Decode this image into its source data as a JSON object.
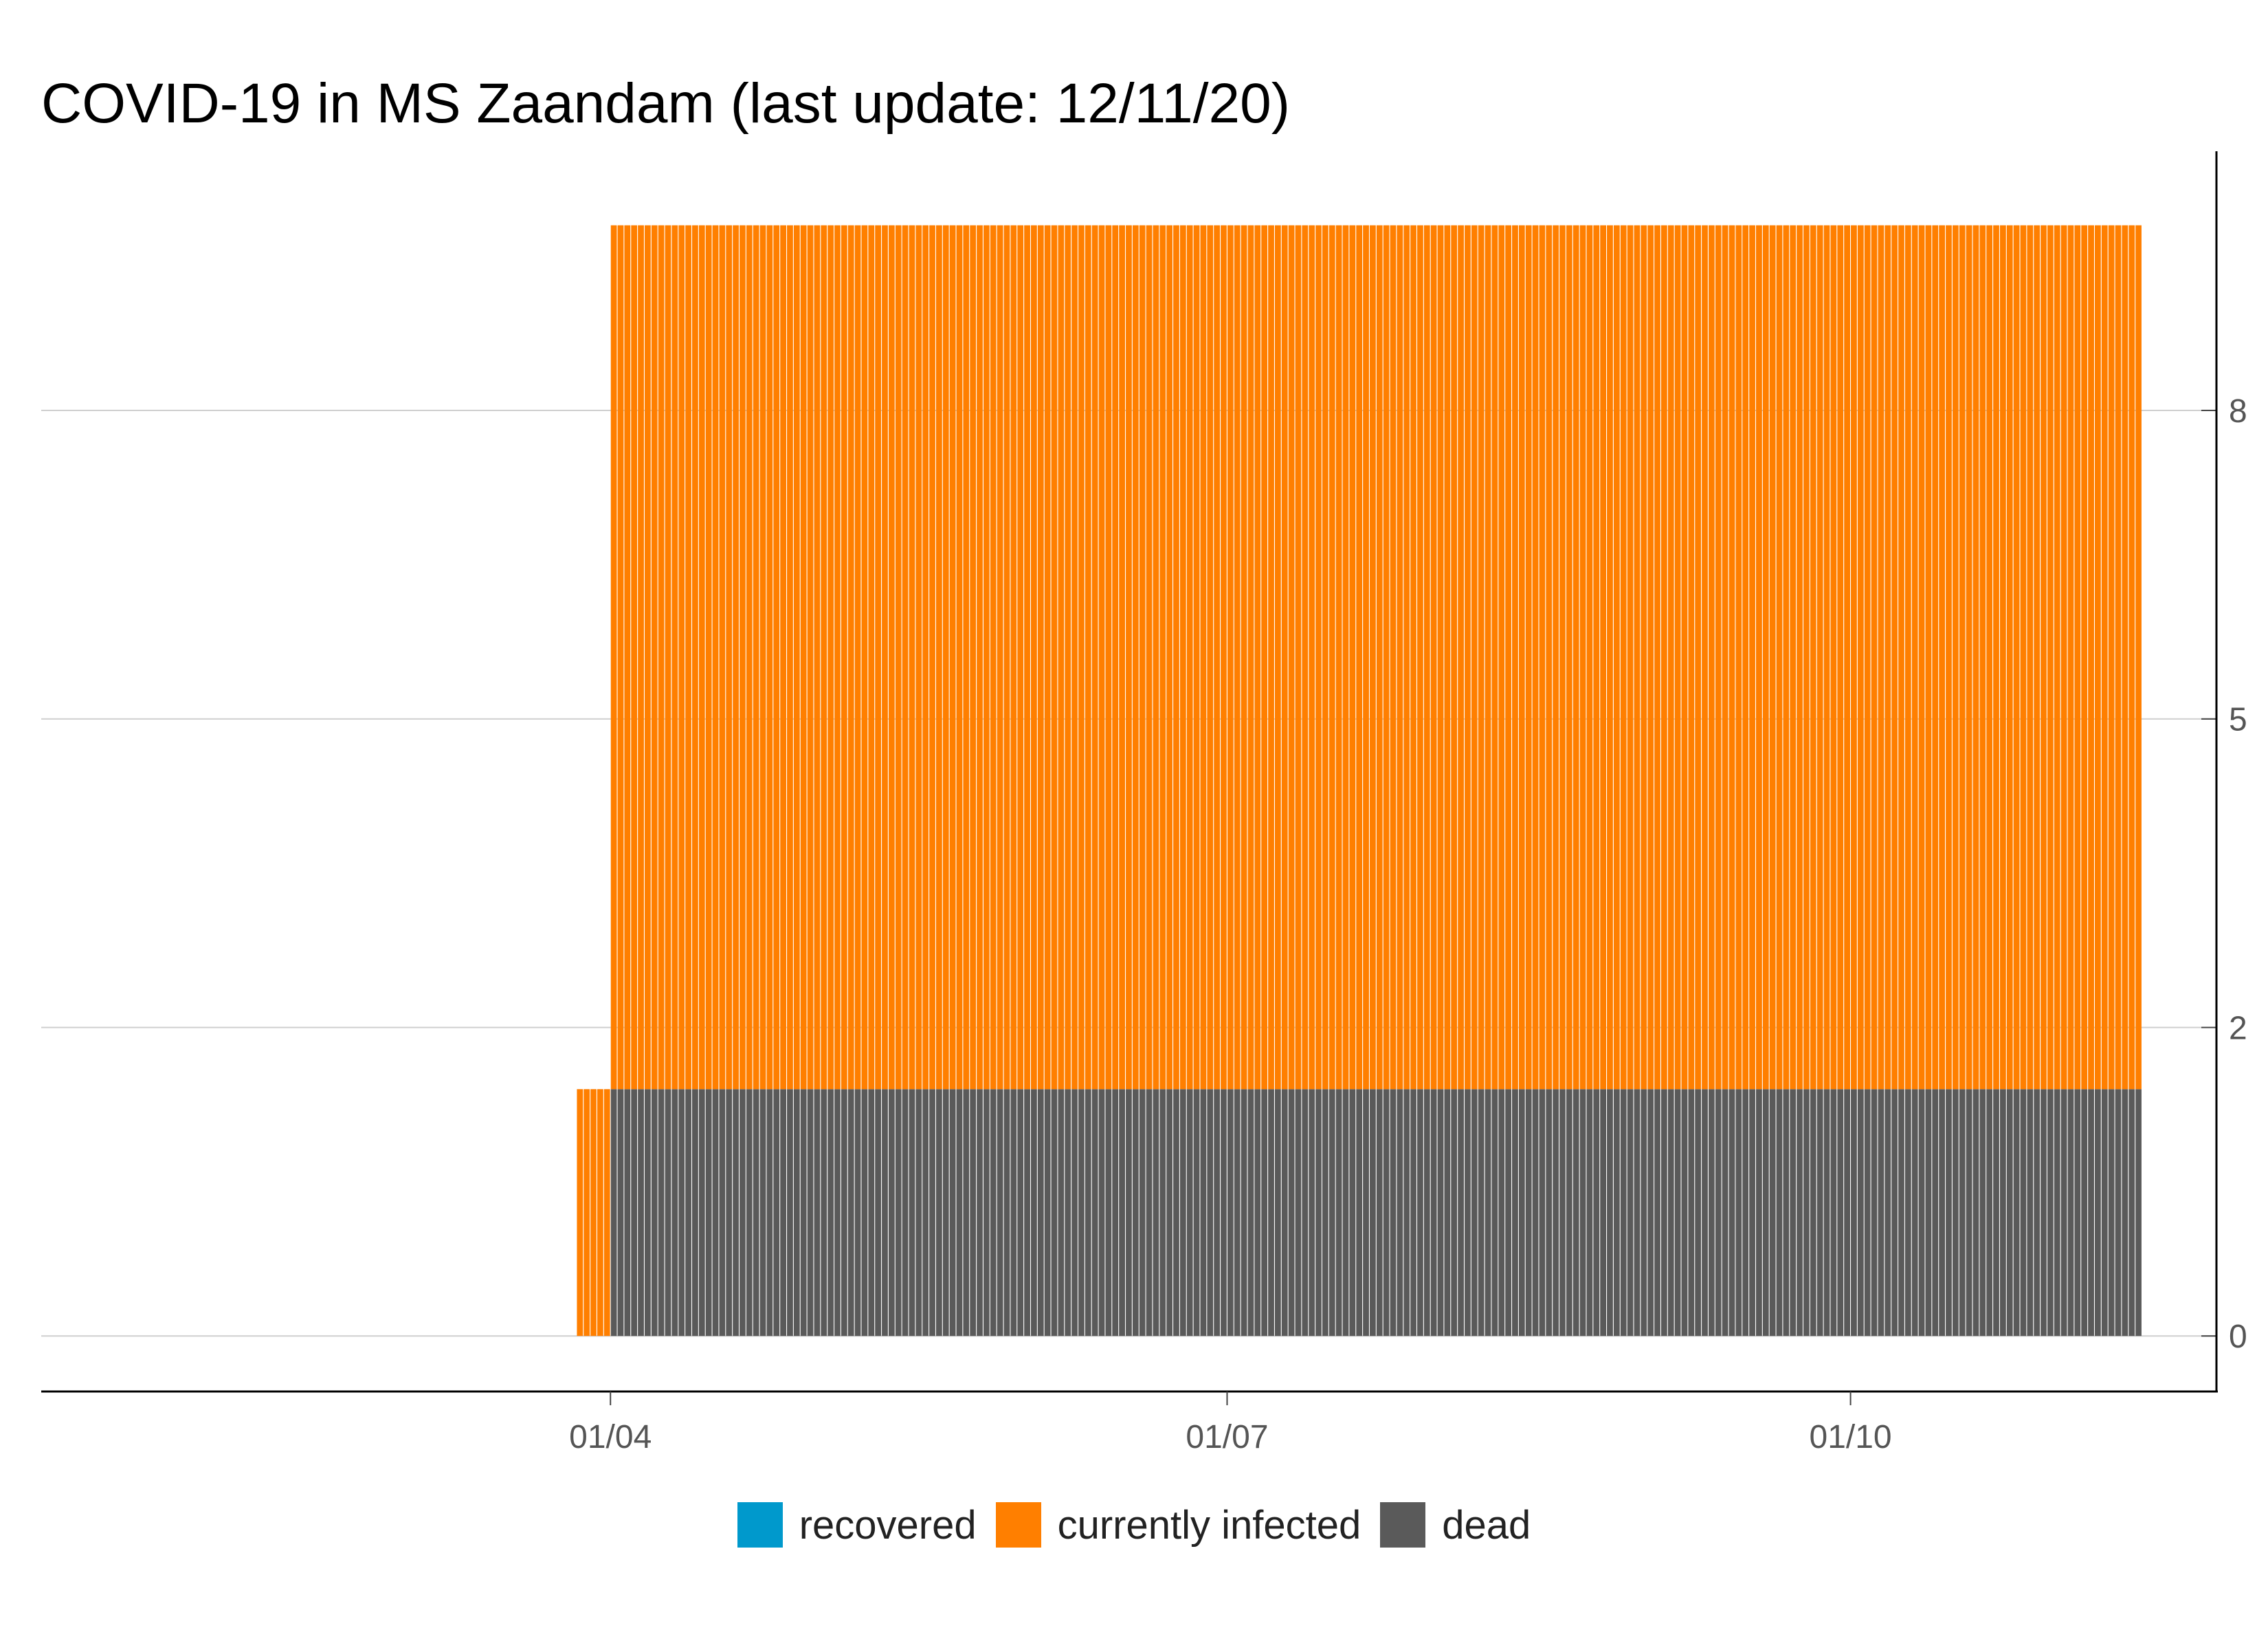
{
  "chart_data": {
    "type": "bar",
    "stacked": true,
    "title": "COVID-19 in MS Zaandam (last update: 12/11/20)",
    "xlabel": "",
    "ylabel": "",
    "x_axis_type": "date",
    "x_start": "2020-03-27",
    "x_end": "2020-11-12",
    "xlim": [
      "2020-01-08",
      "2020-11-23"
    ],
    "xticks": [
      {
        "date": "2020-04-01",
        "label": "01/04"
      },
      {
        "date": "2020-07-01",
        "label": "01/07"
      },
      {
        "date": "2020-10-01",
        "label": "01/10"
      }
    ],
    "y_axis_position": "right",
    "ylim": [
      -0.45,
      9.6
    ],
    "yticks": [
      {
        "value": 0,
        "label": "0"
      },
      {
        "value": 2.5,
        "label": "2"
      },
      {
        "value": 5,
        "label": "5"
      },
      {
        "value": 7.5,
        "label": "8"
      }
    ],
    "grid": "horizontal",
    "legend_position": "bottom",
    "segments": [
      {
        "from": "2020-03-27",
        "to": "2020-03-31",
        "recovered": 0,
        "currently_infected": 2,
        "dead": 0
      },
      {
        "from": "2020-04-01",
        "to": "2020-11-12",
        "recovered": 0,
        "currently_infected": 7,
        "dead": 2
      }
    ],
    "series": [
      {
        "name": "recovered",
        "color": "#0099cc",
        "key": "recovered"
      },
      {
        "name": "currently infected",
        "color": "#ff7f00",
        "key": "currently_infected"
      },
      {
        "name": "dead",
        "color": "#5a5a5a",
        "key": "dead"
      }
    ]
  }
}
